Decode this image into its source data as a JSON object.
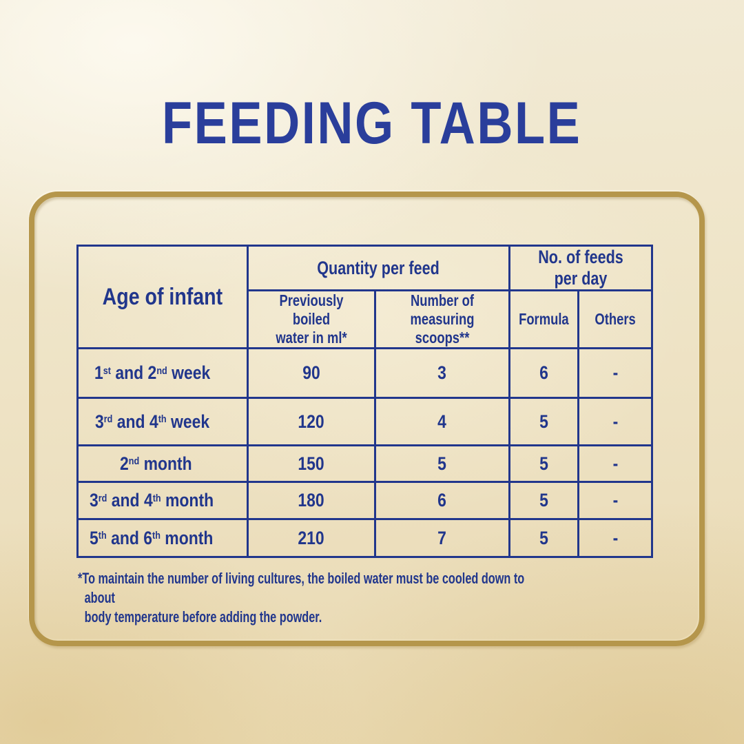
{
  "title": "FEEDING TABLE",
  "colors": {
    "navy": "#21368C",
    "title_blue": "#2A3E9B",
    "gold": "#B5964B",
    "bg_cream": "#EEE3C6"
  },
  "table": {
    "corner_header": "Age of infant",
    "quantity_group_header": "Quantity per feed",
    "feeds_group_header": "No. of feeds per day",
    "subheaders": {
      "water": "Previously boiled\nwater in ml*",
      "scoops": "Number of\nmeasuring scoops**",
      "formula": "Formula",
      "others": "Others"
    },
    "rows": [
      {
        "age": "1^{st} and 2^{nd} week",
        "water_ml": "90",
        "scoops": "3",
        "formula_feeds": "6",
        "other_feeds": "-"
      },
      {
        "age": "3^{rd} and 4^{th} week",
        "water_ml": "120",
        "scoops": "4",
        "formula_feeds": "5",
        "other_feeds": "-"
      },
      {
        "age": "2^{nd} month",
        "water_ml": "150",
        "scoops": "5",
        "formula_feeds": "5",
        "other_feeds": "-"
      },
      {
        "age": "3^{rd} and 4^{th} month",
        "water_ml": "180",
        "scoops": "6",
        "formula_feeds": "5",
        "other_feeds": "-"
      },
      {
        "age": "5^{th} and 6^{th} month",
        "water_ml": "210",
        "scoops": "7",
        "formula_feeds": "5",
        "other_feeds": "-"
      }
    ]
  },
  "footnote": "*To maintain the number of living cultures, the boiled water must be cooled down to about\nbody temperature before adding the powder."
}
